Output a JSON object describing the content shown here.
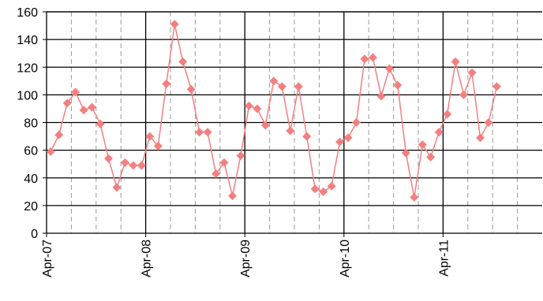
{
  "chart_data": {
    "type": "line",
    "categories": [
      "Apr-07",
      null,
      null,
      null,
      null,
      null,
      null,
      null,
      null,
      null,
      null,
      null,
      "Apr-08",
      null,
      null,
      null,
      null,
      null,
      null,
      null,
      null,
      null,
      null,
      null,
      "Apr-09",
      null,
      null,
      null,
      null,
      null,
      null,
      null,
      null,
      null,
      null,
      null,
      "Apr-10",
      null,
      null,
      null,
      null,
      null,
      null,
      null,
      null,
      null,
      null,
      null,
      "Apr-11",
      null,
      null,
      null,
      null,
      null,
      null,
      null,
      null,
      null,
      null,
      null
    ],
    "series": [
      {
        "color": "#f47f7f",
        "values": [
          59,
          71,
          94,
          102,
          89,
          91,
          79,
          54,
          33,
          51,
          49,
          49,
          70,
          63,
          108,
          151,
          124,
          104,
          73,
          73,
          43,
          51,
          27,
          56,
          92,
          90,
          78,
          110,
          106,
          74,
          106,
          70,
          32,
          30,
          34,
          66,
          69,
          80,
          126,
          127,
          99,
          119,
          107,
          58,
          26,
          64,
          55,
          73,
          86,
          124,
          100,
          116,
          69,
          80,
          106,
          null,
          null,
          null,
          null,
          null
        ]
      }
    ],
    "ylim": [
      0,
      160
    ],
    "yticks": [
      0,
      20,
      40,
      60,
      80,
      100,
      120,
      140,
      160
    ],
    "grid": true
  }
}
